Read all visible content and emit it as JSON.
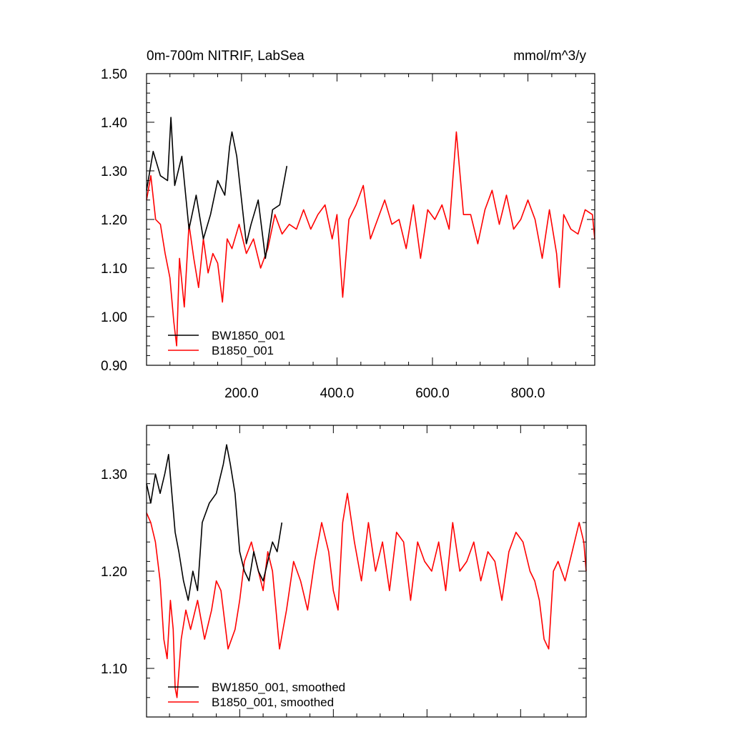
{
  "chart_data": [
    {
      "type": "line",
      "title": "0m-700m NITRIF, LabSea",
      "units": "mmol/m^3/y",
      "xlim": [
        1,
        940
      ],
      "ylim": [
        0.9,
        1.5
      ],
      "yticks": [
        0.9,
        1.0,
        1.1,
        1.2,
        1.3,
        1.4,
        1.5
      ],
      "ytick_labels": [
        "0.90",
        "1.00",
        "1.10",
        "1.20",
        "1.30",
        "1.40",
        "1.50"
      ],
      "xticks": [
        200,
        400,
        600,
        800
      ],
      "xtick_labels": [
        "200.0",
        "400.0",
        "600.0",
        "800.0"
      ],
      "legend_position": "bottom-left",
      "series": [
        {
          "name": "BW1850_001",
          "color": "#000000",
          "x": [
            1,
            15,
            30,
            45,
            52,
            60,
            75,
            90,
            105,
            120,
            135,
            150,
            165,
            175,
            180,
            190,
            200,
            210,
            220,
            235,
            250,
            265,
            280,
            295
          ],
          "values": [
            1.26,
            1.34,
            1.29,
            1.28,
            1.41,
            1.27,
            1.33,
            1.18,
            1.25,
            1.16,
            1.21,
            1.28,
            1.25,
            1.35,
            1.38,
            1.33,
            1.24,
            1.15,
            1.19,
            1.24,
            1.12,
            1.22,
            1.23,
            1.31
          ]
        },
        {
          "name": "B1850_001",
          "color": "#ff0000",
          "x": [
            1,
            10,
            20,
            30,
            40,
            50,
            58,
            64,
            70,
            80,
            90,
            100,
            110,
            120,
            130,
            140,
            150,
            160,
            170,
            180,
            195,
            210,
            225,
            240,
            255,
            270,
            285,
            300,
            315,
            330,
            345,
            360,
            375,
            390,
            400,
            412,
            425,
            440,
            455,
            470,
            485,
            500,
            515,
            530,
            545,
            560,
            575,
            590,
            605,
            620,
            635,
            650,
            665,
            680,
            695,
            710,
            725,
            740,
            755,
            770,
            785,
            800,
            815,
            830,
            845,
            860,
            866,
            875,
            890,
            905,
            920,
            935,
            940
          ],
          "values": [
            1.24,
            1.29,
            1.2,
            1.19,
            1.13,
            1.08,
            0.99,
            0.94,
            1.12,
            1.02,
            1.19,
            1.12,
            1.06,
            1.16,
            1.09,
            1.13,
            1.11,
            1.03,
            1.16,
            1.14,
            1.19,
            1.13,
            1.16,
            1.1,
            1.14,
            1.21,
            1.17,
            1.19,
            1.18,
            1.22,
            1.18,
            1.21,
            1.23,
            1.16,
            1.21,
            1.04,
            1.2,
            1.23,
            1.27,
            1.16,
            1.2,
            1.24,
            1.19,
            1.2,
            1.14,
            1.23,
            1.12,
            1.22,
            1.2,
            1.23,
            1.18,
            1.38,
            1.21,
            1.21,
            1.15,
            1.22,
            1.26,
            1.19,
            1.25,
            1.18,
            1.2,
            1.24,
            1.2,
            1.12,
            1.22,
            1.13,
            1.06,
            1.21,
            1.18,
            1.17,
            1.22,
            1.21,
            1.16
          ]
        }
      ]
    },
    {
      "type": "line",
      "xlim": [
        1,
        940
      ],
      "ylim": [
        1.05,
        1.35
      ],
      "yticks": [
        1.1,
        1.2,
        1.3
      ],
      "ytick_labels": [
        "1.10",
        "1.20",
        "1.30"
      ],
      "legend_position": "bottom-left",
      "series": [
        {
          "name": "BW1850_001, smoothed",
          "color": "#000000",
          "x": [
            1,
            10,
            20,
            30,
            40,
            48,
            55,
            62,
            70,
            80,
            90,
            100,
            110,
            120,
            135,
            150,
            165,
            172,
            180,
            190,
            200,
            210,
            220,
            230,
            240,
            250,
            260,
            270,
            280,
            290
          ],
          "values": [
            1.29,
            1.27,
            1.3,
            1.28,
            1.3,
            1.32,
            1.28,
            1.24,
            1.22,
            1.19,
            1.17,
            1.2,
            1.18,
            1.25,
            1.27,
            1.28,
            1.31,
            1.33,
            1.31,
            1.28,
            1.22,
            1.2,
            1.19,
            1.22,
            1.2,
            1.19,
            1.21,
            1.23,
            1.22,
            1.25
          ]
        },
        {
          "name": "B1850_001, smoothed",
          "color": "#ff0000",
          "x": [
            1,
            10,
            20,
            30,
            38,
            45,
            52,
            58,
            62,
            66,
            75,
            85,
            95,
            110,
            125,
            140,
            150,
            160,
            175,
            190,
            200,
            210,
            225,
            240,
            250,
            260,
            270,
            285,
            300,
            315,
            330,
            345,
            360,
            375,
            390,
            400,
            410,
            420,
            430,
            445,
            460,
            475,
            490,
            505,
            520,
            535,
            550,
            565,
            580,
            595,
            610,
            625,
            640,
            655,
            670,
            685,
            700,
            715,
            730,
            745,
            760,
            775,
            790,
            805,
            820,
            830,
            840,
            850,
            860,
            870,
            880,
            895,
            910,
            925,
            935,
            940
          ],
          "values": [
            1.26,
            1.25,
            1.23,
            1.19,
            1.13,
            1.11,
            1.17,
            1.14,
            1.08,
            1.07,
            1.13,
            1.16,
            1.14,
            1.17,
            1.13,
            1.16,
            1.19,
            1.18,
            1.12,
            1.14,
            1.17,
            1.21,
            1.23,
            1.2,
            1.18,
            1.22,
            1.2,
            1.12,
            1.16,
            1.21,
            1.19,
            1.16,
            1.21,
            1.25,
            1.22,
            1.18,
            1.16,
            1.25,
            1.28,
            1.23,
            1.19,
            1.25,
            1.2,
            1.23,
            1.18,
            1.24,
            1.23,
            1.17,
            1.23,
            1.21,
            1.2,
            1.23,
            1.18,
            1.25,
            1.2,
            1.21,
            1.23,
            1.19,
            1.22,
            1.21,
            1.17,
            1.22,
            1.24,
            1.23,
            1.2,
            1.19,
            1.17,
            1.13,
            1.12,
            1.2,
            1.21,
            1.19,
            1.22,
            1.25,
            1.23,
            1.2
          ]
        }
      ]
    }
  ]
}
